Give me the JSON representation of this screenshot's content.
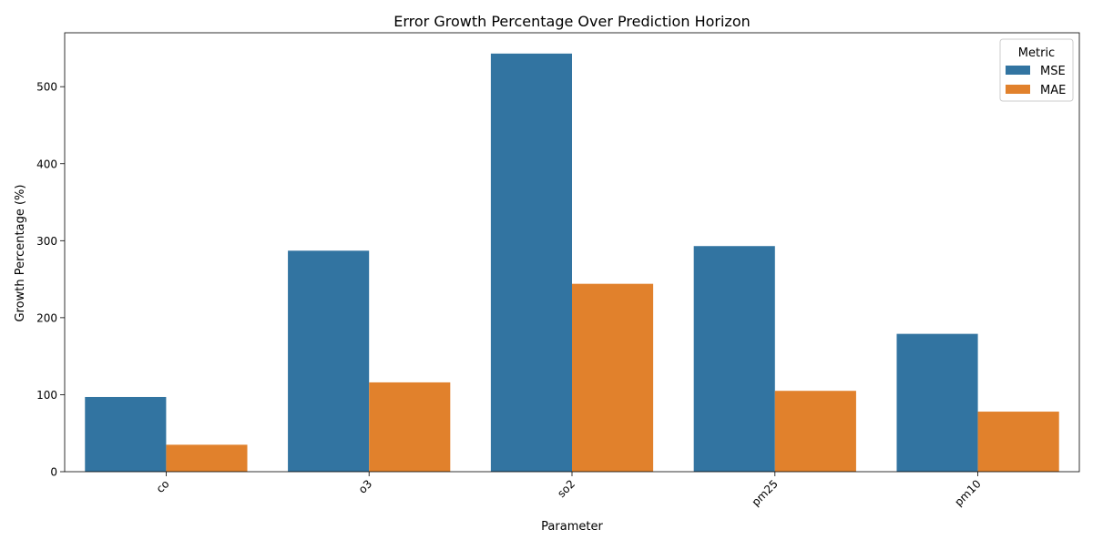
{
  "chart_data": {
    "type": "bar",
    "title": "Error Growth Percentage Over Prediction Horizon",
    "xlabel": "Parameter",
    "ylabel": "Growth Percentage (%)",
    "categories": [
      "co",
      "o3",
      "so2",
      "pm25",
      "pm10"
    ],
    "series": [
      {
        "name": "MSE",
        "values": [
          97,
          287,
          543,
          293,
          179
        ],
        "color": "#3274a1"
      },
      {
        "name": "MAE",
        "values": [
          35,
          116,
          244,
          105,
          78
        ],
        "color": "#e1812c"
      }
    ],
    "ylim": [
      0,
      570
    ],
    "yticks": [
      0,
      100,
      200,
      300,
      400,
      500
    ],
    "grid": false,
    "legend": {
      "title": "Metric",
      "placement": "top-right"
    }
  }
}
